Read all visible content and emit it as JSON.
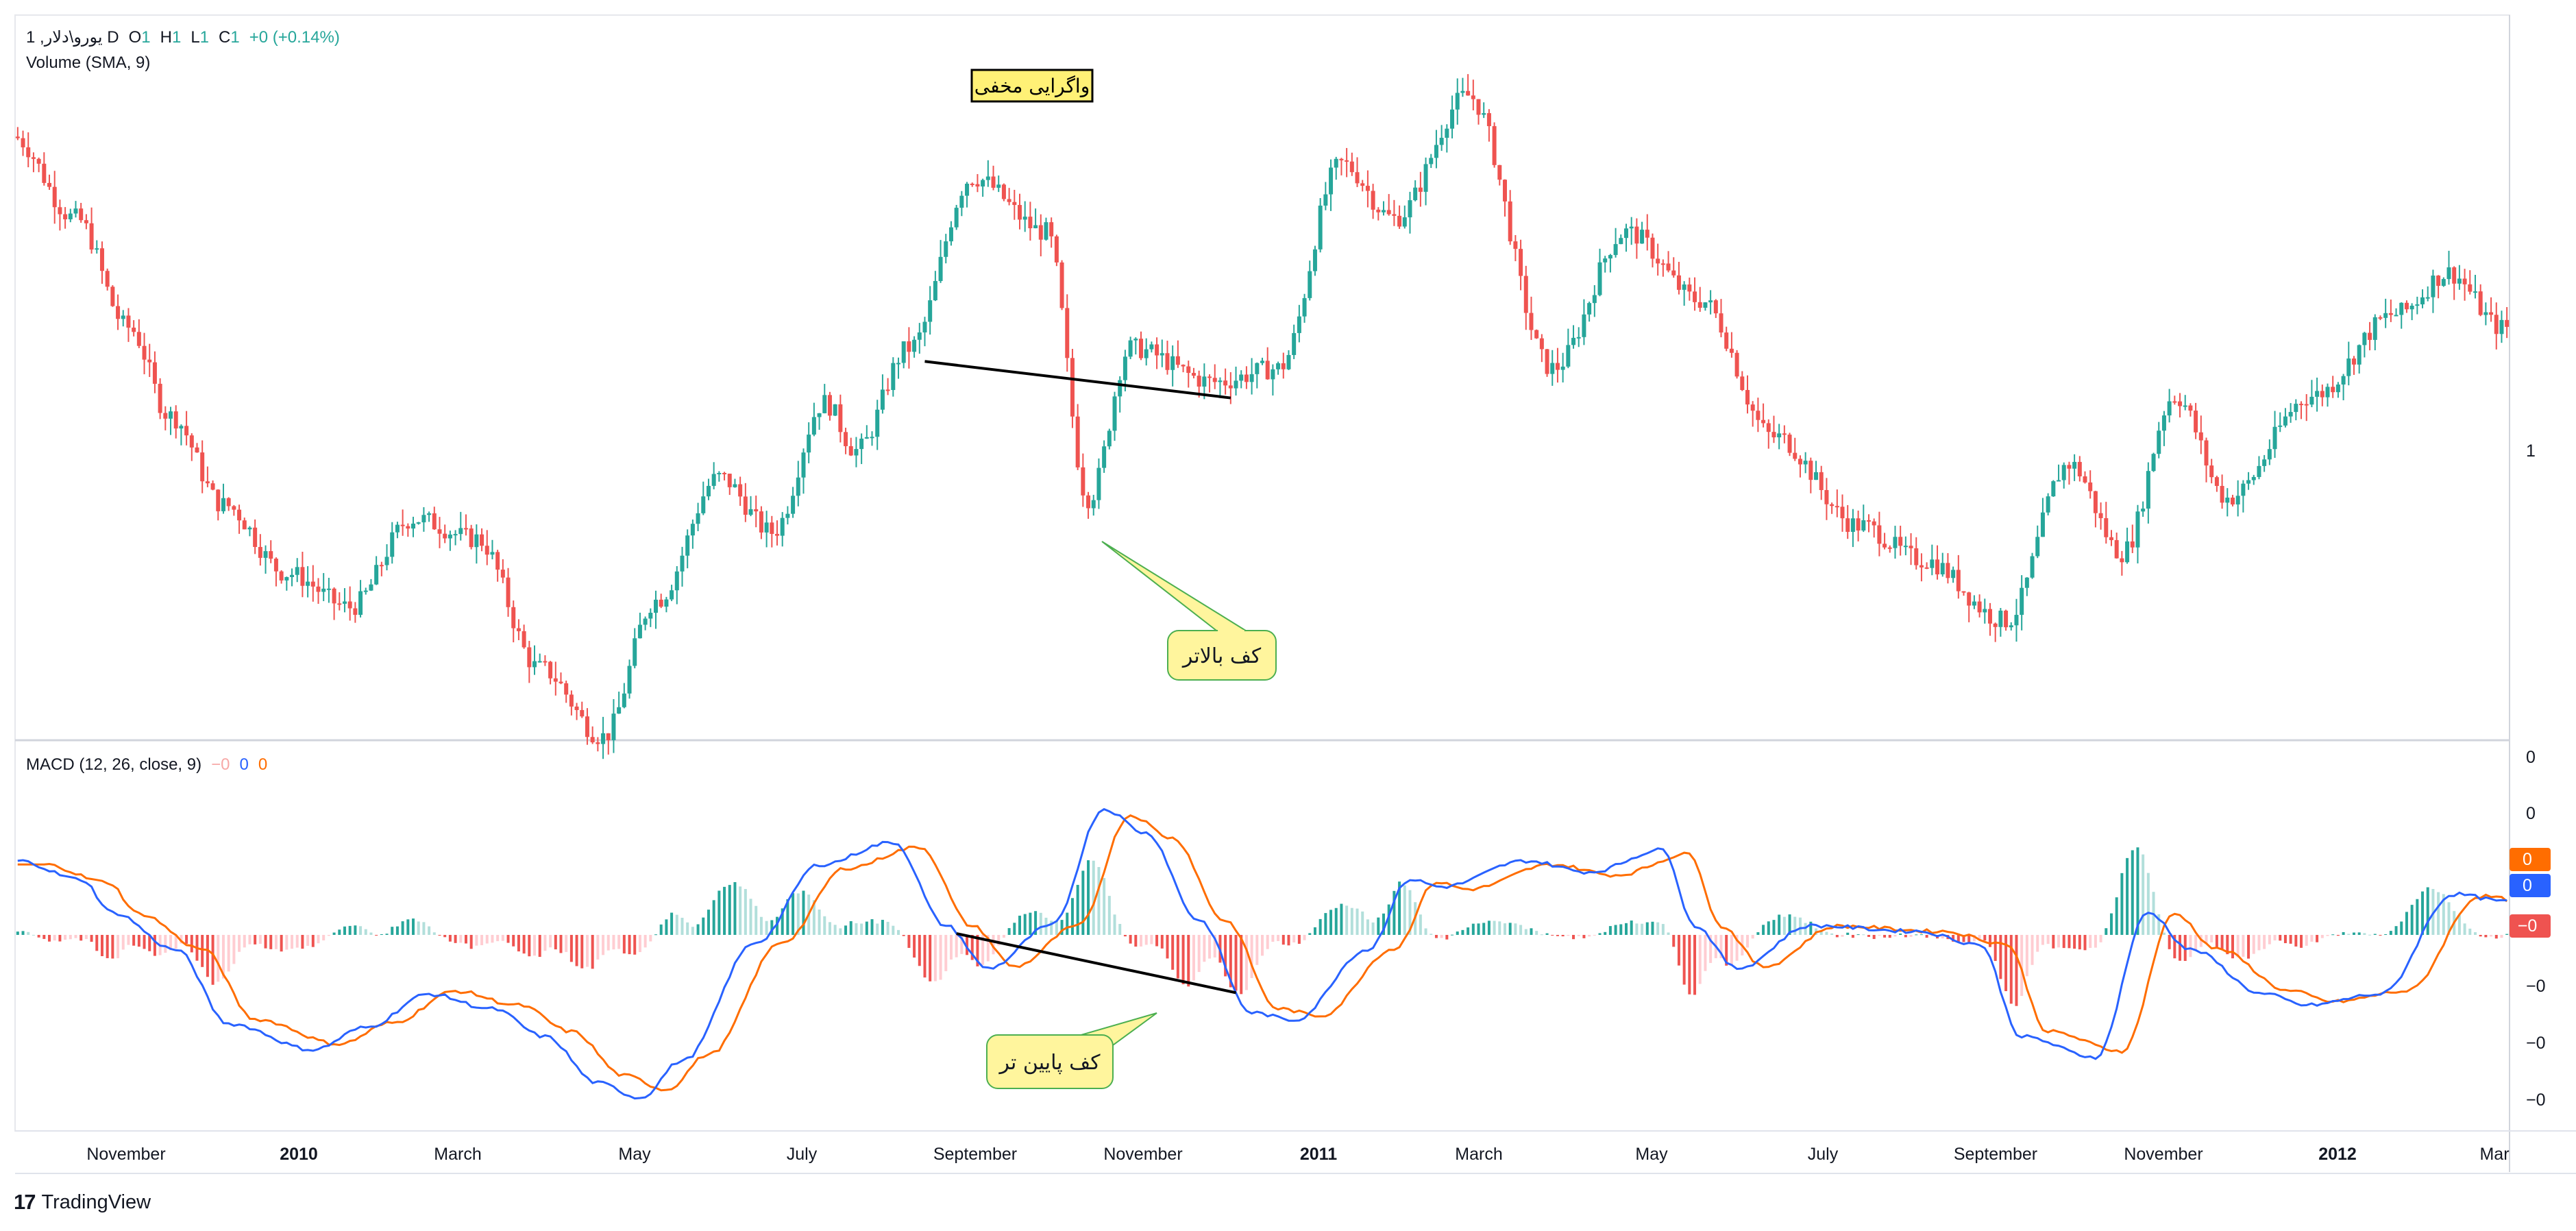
{
  "header": {
    "symbol": "1 ,یورو\\دلار D",
    "ohlc": [
      {
        "label": "O",
        "value": "1"
      },
      {
        "label": "H",
        "value": "1"
      },
      {
        "label": "L",
        "value": "1"
      },
      {
        "label": "C",
        "value": "1"
      }
    ],
    "change": "+0 (+0.14%)",
    "volume_label": "Volume (SMA, 9)"
  },
  "macd_legend": {
    "label": "MACD (12, 26, close, 9)",
    "values": [
      "−0",
      "0",
      "0"
    ]
  },
  "annotations": {
    "title_box": "واگرایی مخفی",
    "price_callout": "کف بالاتر",
    "macd_callout": "کف پایین تر"
  },
  "price_axis": {
    "last_label": "1"
  },
  "macd_axis": {
    "ticks": [
      "0",
      "0",
      "−0",
      "−0",
      "−0"
    ],
    "badges": [
      {
        "text": "0",
        "color": "#ff6d00"
      },
      {
        "text": "0",
        "color": "#2962ff"
      },
      {
        "text": "−0",
        "color": "#ef5350"
      }
    ]
  },
  "time_axis": [
    {
      "label": "November",
      "bold": false
    },
    {
      "label": "2010",
      "bold": true
    },
    {
      "label": "March",
      "bold": false
    },
    {
      "label": "May",
      "bold": false
    },
    {
      "label": "July",
      "bold": false
    },
    {
      "label": "September",
      "bold": false
    },
    {
      "label": "November",
      "bold": false
    },
    {
      "label": "2011",
      "bold": true
    },
    {
      "label": "March",
      "bold": false
    },
    {
      "label": "May",
      "bold": false
    },
    {
      "label": "July",
      "bold": false
    },
    {
      "label": "September",
      "bold": false
    },
    {
      "label": "November",
      "bold": false
    },
    {
      "label": "2012",
      "bold": true
    },
    {
      "label": "Mar",
      "bold": false
    }
  ],
  "branding": {
    "text": "TradingView",
    "mark": "17"
  },
  "colors": {
    "up": "#26a69a",
    "down": "#ef5350",
    "macd_line": "#2962ff",
    "signal_line": "#ff6d00",
    "callout_fill": "#fff59d",
    "callout_stroke": "#4caf50",
    "title_fill": "#fff176"
  },
  "chart_data": {
    "type": "candlestick",
    "price_series_anchors": [
      [
        0,
        0.86
      ],
      [
        12,
        0.74
      ],
      [
        22,
        0.58
      ],
      [
        30,
        0.45
      ],
      [
        40,
        0.32
      ],
      [
        52,
        0.22
      ],
      [
        64,
        0.17
      ],
      [
        76,
        0.3
      ],
      [
        88,
        0.27
      ],
      [
        100,
        0.08
      ],
      [
        112,
        -0.02
      ],
      [
        122,
        0.18
      ],
      [
        134,
        0.36
      ],
      [
        144,
        0.28
      ],
      [
        154,
        0.47
      ],
      [
        160,
        0.4
      ],
      [
        170,
        0.55
      ],
      [
        182,
        0.8
      ],
      [
        196,
        0.72
      ],
      [
        204,
        0.33
      ],
      [
        212,
        0.55
      ],
      [
        228,
        0.5
      ],
      [
        240,
        0.52
      ],
      [
        252,
        0.82
      ],
      [
        262,
        0.74
      ],
      [
        276,
        0.92
      ],
      [
        292,
        0.52
      ],
      [
        306,
        0.72
      ],
      [
        320,
        0.62
      ],
      [
        334,
        0.42
      ],
      [
        350,
        0.29
      ],
      [
        362,
        0.24
      ],
      [
        378,
        0.15
      ],
      [
        390,
        0.38
      ],
      [
        400,
        0.25
      ],
      [
        410,
        0.48
      ],
      [
        420,
        0.33
      ],
      [
        436,
        0.48
      ],
      [
        452,
        0.6
      ],
      [
        462,
        0.66
      ],
      [
        472,
        0.58
      ]
    ],
    "macd_series_anchors": [
      [
        0,
        0.4
      ],
      [
        12,
        0.3
      ],
      [
        18,
        0.12
      ],
      [
        30,
        -0.08
      ],
      [
        40,
        -0.48
      ],
      [
        56,
        -0.62
      ],
      [
        66,
        -0.5
      ],
      [
        78,
        -0.32
      ],
      [
        90,
        -0.4
      ],
      [
        100,
        -0.55
      ],
      [
        110,
        -0.8
      ],
      [
        118,
        -0.88
      ],
      [
        126,
        -0.68
      ],
      [
        140,
        -0.04
      ],
      [
        152,
        0.38
      ],
      [
        166,
        0.5
      ],
      [
        176,
        0.05
      ],
      [
        184,
        -0.18
      ],
      [
        196,
        0.05
      ],
      [
        206,
        0.68
      ],
      [
        214,
        0.55
      ],
      [
        224,
        0.08
      ],
      [
        234,
        -0.42
      ],
      [
        242,
        -0.46
      ],
      [
        256,
        -0.08
      ],
      [
        264,
        0.3
      ],
      [
        270,
        0.26
      ],
      [
        286,
        0.4
      ],
      [
        298,
        0.34
      ],
      [
        312,
        0.46
      ],
      [
        318,
        0.05
      ],
      [
        326,
        -0.18
      ],
      [
        340,
        0.05
      ],
      [
        360,
        0.02
      ],
      [
        372,
        -0.05
      ],
      [
        380,
        -0.55
      ],
      [
        394,
        -0.66
      ],
      [
        404,
        0.12
      ],
      [
        412,
        -0.08
      ],
      [
        426,
        -0.32
      ],
      [
        434,
        -0.38
      ],
      [
        448,
        -0.32
      ],
      [
        462,
        0.22
      ],
      [
        472,
        0.18
      ]
    ],
    "signal_lag": 5,
    "divergence": {
      "price_low_1_bar": 172,
      "price_low_2_bar": 230,
      "macd_low_1_bar": 178,
      "macd_low_2_bar": 231
    },
    "xlabel": "",
    "ylabel": ""
  }
}
